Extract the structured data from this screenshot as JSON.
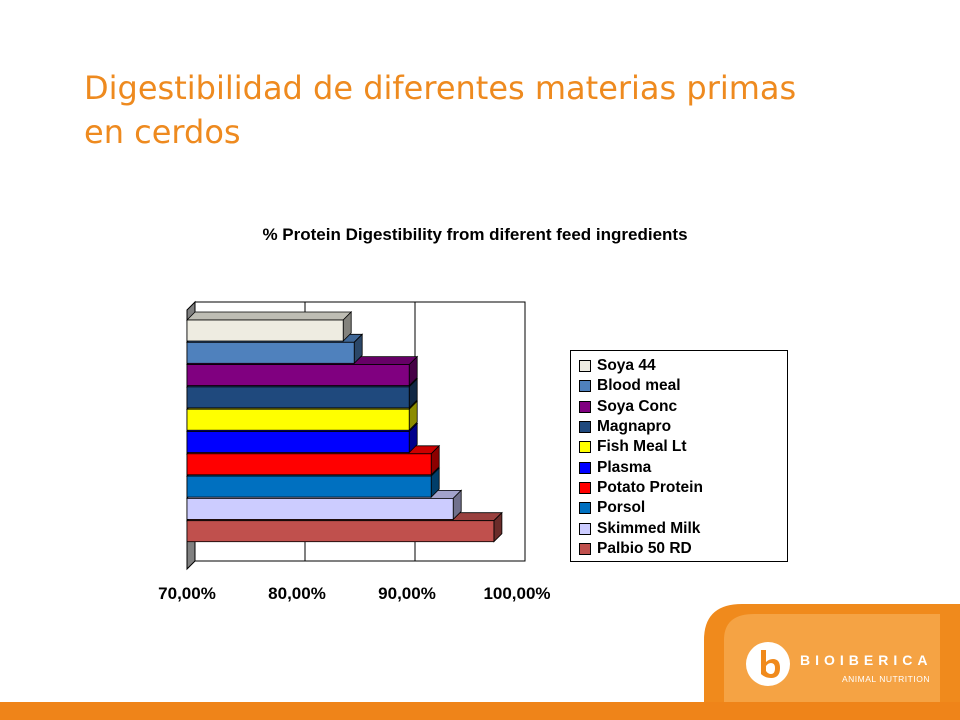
{
  "slide": {
    "title": "Digestibilidad de diferentes materias primas en cerdos"
  },
  "brand": {
    "name": "BIOIBERICA",
    "subtitle": "ANIMAL NUTRITION",
    "accent_color": "#ee8a1f"
  },
  "chart_data": {
    "type": "bar",
    "orientation": "horizontal",
    "style": "3d",
    "title": "% Protein Digestibility from diferent feed ingredients",
    "xlabel": "",
    "ylabel": "",
    "xlim": [
      0.7,
      1.0
    ],
    "x_ticks": [
      "70,00%",
      "80,00%",
      "90,00%",
      "100,00%"
    ],
    "grid": "vertical",
    "legend_position": "right",
    "categories": [
      "Soya 44",
      "Blood meal",
      "Soya Conc",
      "Magnapro",
      "Fish Meal Lt",
      "Plasma",
      "Potato Protein",
      "Porsol",
      "Skimmed Milk",
      "Palbio 50 RD"
    ],
    "values": [
      0.842,
      0.852,
      0.902,
      0.902,
      0.902,
      0.902,
      0.922,
      0.922,
      0.942,
      0.979
    ],
    "colors": [
      "#eeece1",
      "#4f81bd",
      "#800080",
      "#1f497d",
      "#ffff00",
      "#0000ff",
      "#ff0000",
      "#0070c0",
      "#ccccff",
      "#c0504d"
    ]
  }
}
